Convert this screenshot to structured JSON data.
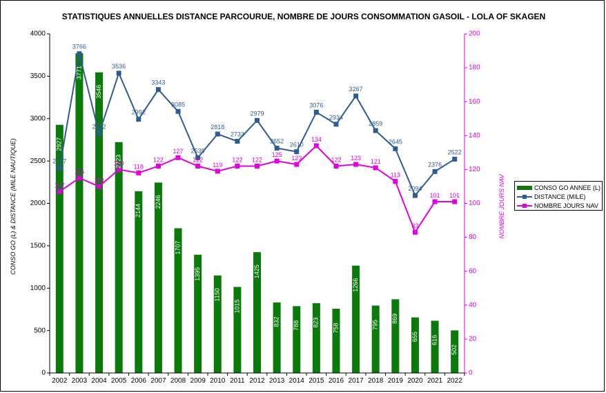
{
  "chart_data": {
    "type": "bar",
    "title": "STATISTIQUES ANNUELLES DISTANCE PARCOURUE, NOMBRE DE JOURS CONSOMMATION GASOIL - LOLA OF SKAGEN",
    "ylabel_left": "CONSO GO (L) & DISTANCE (MILE NAUTIQUE)",
    "ylabel_right": "NOMBRE JOURS NAV",
    "ylim_left": [
      0,
      4000
    ],
    "ylim_right": [
      0,
      200
    ],
    "yticks_left": [
      "0",
      "500",
      "1000",
      "1500",
      "2000",
      "2500",
      "3000",
      "3500",
      "4000"
    ],
    "yticks_right": [
      "0",
      "20",
      "40",
      "60",
      "80",
      "100",
      "120",
      "140",
      "160",
      "180",
      "200"
    ],
    "categories": [
      "2002",
      "2003",
      "2004",
      "2005",
      "2006",
      "2007",
      "2008",
      "2009",
      "2010",
      "2011",
      "2012",
      "2013",
      "2014",
      "2015",
      "2016",
      "2017",
      "2018",
      "2019",
      "2020",
      "2021",
      "2022"
    ],
    "series": [
      {
        "name": "CONSO GO ANNEE (L)",
        "type": "bar",
        "axis": "left",
        "color": "#0a7a0a",
        "values": [
          2927,
          3771,
          3546,
          2723,
          2144,
          2246,
          1707,
          1395,
          1150,
          1015,
          1425,
          832,
          788,
          823,
          758,
          1266,
          795,
          869,
          655,
          616,
          502
        ],
        "labels": [
          "2927",
          "3771",
          "3546",
          "2723",
          "2144",
          "2246",
          "1707",
          "1395",
          "1150",
          "1015",
          "1425",
          "832",
          "788",
          "823",
          "758",
          "1266",
          "795",
          "869",
          "655",
          "616",
          "502"
        ]
      },
      {
        "name": "DISTANCE (MILE)",
        "type": "line",
        "axis": "left",
        "color": "#2f5a92",
        "values": [
          2417,
          3766,
          2822,
          3536,
          2992,
          3343,
          3085,
          2539,
          2818,
          2733,
          2979,
          2652,
          2610,
          3076,
          2934,
          3267,
          2859,
          2645,
          2094,
          2376,
          2522
        ],
        "labels": [
          "2417",
          "3766",
          "2822",
          "3536",
          "2992",
          "3343",
          "3085",
          "2539",
          "2818",
          "2733",
          "2979",
          "2652",
          "2610",
          "3076",
          "2934",
          "3267",
          "2859",
          "2645",
          "2094",
          "2376",
          "2522"
        ]
      },
      {
        "name": "NOMBRE JOURS NAV",
        "type": "line",
        "axis": "right",
        "color": "#e000e0",
        "values": [
          107,
          115,
          110,
          120,
          118,
          122,
          127,
          122,
          119,
          122,
          122,
          125,
          123,
          134,
          122,
          123,
          121,
          113,
          83,
          101,
          101
        ],
        "labels": [
          "107",
          "115",
          "110",
          "120",
          "118",
          "122",
          "127",
          "122",
          "119",
          "122",
          "122",
          "125",
          "123",
          "134",
          "122",
          "123",
          "121",
          "113",
          "83",
          "101",
          "101"
        ]
      }
    ],
    "grid": false,
    "legend_position": "right"
  }
}
